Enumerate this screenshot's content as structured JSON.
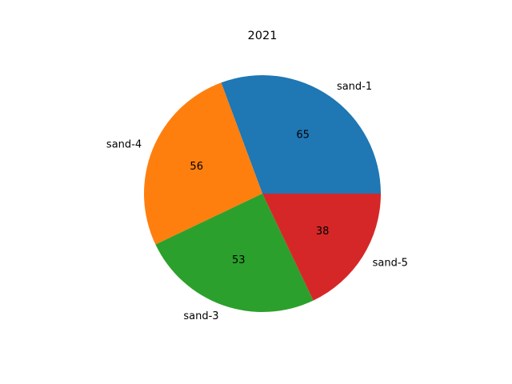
{
  "chart_data": {
    "type": "pie",
    "title": "2021",
    "labels": [
      "sand-1",
      "sand-4",
      "sand-3",
      "sand-5"
    ],
    "values": [
      65,
      56,
      53,
      38
    ],
    "value_labels": [
      "65",
      "56",
      "53",
      "38"
    ],
    "colors": [
      "#1f77b4",
      "#ff7f0e",
      "#2ca02c",
      "#d62728"
    ],
    "start_angle_deg": 0,
    "direction": "counterclockwise"
  }
}
